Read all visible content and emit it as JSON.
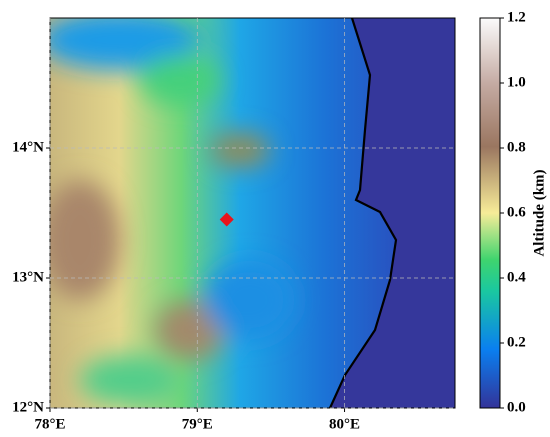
{
  "map": {
    "xlim": [
      78,
      80.75
    ],
    "ylim": [
      12,
      15
    ],
    "xticks": [
      {
        "value": 78,
        "label": "78°E"
      },
      {
        "value": 79,
        "label": "79°E"
      },
      {
        "value": 80,
        "label": "80°E"
      }
    ],
    "yticks": [
      {
        "value": 12,
        "label": "12°N"
      },
      {
        "value": 13,
        "label": "13°N"
      },
      {
        "value": 14,
        "label": "14°N"
      }
    ],
    "grid": true,
    "marker": {
      "lon": 79.2,
      "lat": 13.45,
      "color": "#e8141b"
    },
    "colorbar": {
      "label": "Altitude (km)",
      "lim": [
        0,
        1.2
      ],
      "ticks": [
        {
          "value": 0,
          "label": "0.0"
        },
        0.2,
        0.4,
        0.6,
        0.8,
        {
          "value": 1,
          "label": "1.0"
        },
        1.2
      ]
    }
  }
}
